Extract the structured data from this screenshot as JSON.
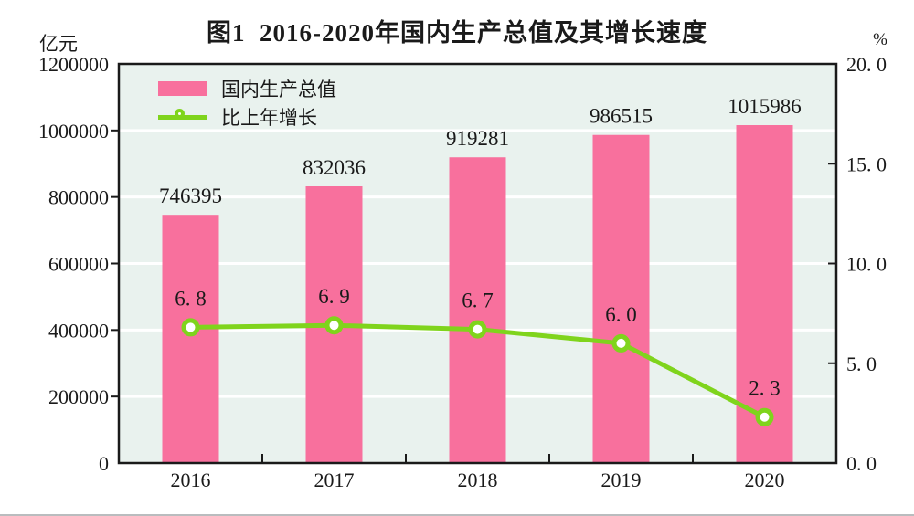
{
  "title": "图1  2016-2020年国内生产总值及其增长速度",
  "axis_units": {
    "left": "亿元",
    "right": "%"
  },
  "legend": {
    "items": [
      {
        "label": "国内生产总值",
        "swatch": "bar"
      },
      {
        "label": "比上年增长",
        "swatch": "line-marker"
      }
    ],
    "position": "top-left inside plot"
  },
  "colors": {
    "bar": "#f8709d",
    "line": "#7fd41c",
    "marker_fill": "#ffffff",
    "plot_background": "#e9f2ee",
    "gridline": "#ffffff",
    "frame": "#1a1a1a",
    "text": "#1a1a1a"
  },
  "chart_data": {
    "type": "bar",
    "subtype": "bar-with-line-overlay-dual-axis",
    "title": "图1  2016-2020年国内生产总值及其增长速度",
    "categories": [
      "2016",
      "2017",
      "2018",
      "2019",
      "2020"
    ],
    "series": [
      {
        "name": "国内生产总值",
        "type": "bar",
        "axis": "left",
        "values": [
          746395,
          832036,
          919281,
          986515,
          1015986
        ],
        "labels": [
          "746395",
          "832036",
          "919281",
          "986515",
          "1015986"
        ],
        "color": "#f8709d"
      },
      {
        "name": "比上年增长",
        "type": "line",
        "axis": "right",
        "values": [
          6.8,
          6.9,
          6.7,
          6.0,
          2.3
        ],
        "labels": [
          "6. 8",
          "6. 9",
          "6. 7",
          "6. 0",
          "2. 3"
        ],
        "color": "#7fd41c"
      }
    ],
    "left_axis": {
      "unit": "亿元",
      "range": [
        0,
        1200000
      ],
      "ticks": [
        0,
        200000,
        400000,
        600000,
        800000,
        1000000,
        1200000
      ],
      "labels": [
        "0",
        "200000",
        "400000",
        "600000",
        "800000",
        "1000000",
        "1200000"
      ]
    },
    "right_axis": {
      "unit": "%",
      "range": [
        0,
        20
      ],
      "ticks": [
        0,
        5,
        10,
        15,
        20
      ],
      "labels": [
        "0. 0",
        "5. 0",
        "10. 0",
        "15. 0",
        "20. 0"
      ]
    },
    "grid": "horizontal white gridlines at left-axis tick intervals",
    "legend_position": "top-left inside plot area"
  }
}
